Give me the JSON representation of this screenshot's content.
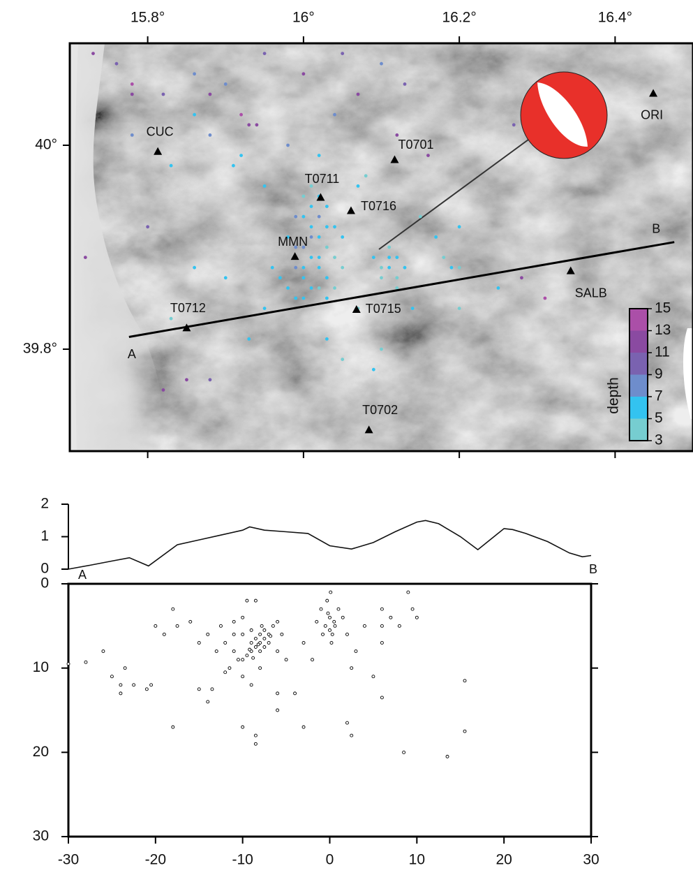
{
  "chart_data": [
    {
      "type": "scatter",
      "xlim": [
        15.7,
        16.5
      ],
      "ylim": [
        39.7,
        40.1
      ],
      "xticks": [
        {
          "value": 15.8,
          "label": "15.8°"
        },
        {
          "value": 16,
          "label": "16°"
        },
        {
          "value": 16.2,
          "label": "16.2°"
        },
        {
          "value": 16.4,
          "label": "16.4°"
        }
      ],
      "yticks": [
        {
          "value": 39.8,
          "label": "39.8°"
        },
        {
          "value": 40,
          "label": "40°"
        }
      ],
      "stations": [
        {
          "name": "CUC",
          "lon": 15.813,
          "lat": 39.994
        },
        {
          "name": "T0701",
          "lon": 16.117,
          "lat": 39.986
        },
        {
          "name": "T0711",
          "lon": 16.022,
          "lat": 39.949
        },
        {
          "name": "T0716",
          "lon": 16.061,
          "lat": 39.936
        },
        {
          "name": "MMN",
          "lon": 15.989,
          "lat": 39.891
        },
        {
          "name": "T0715",
          "lon": 16.068,
          "lat": 39.839
        },
        {
          "name": "T0712",
          "lon": 15.85,
          "lat": 39.821
        },
        {
          "name": "T0702",
          "lon": 16.084,
          "lat": 39.721
        },
        {
          "name": "SALB",
          "lon": 16.343,
          "lat": 39.877
        },
        {
          "name": "ORI",
          "lon": 16.449,
          "lat": 40.051
        }
      ],
      "profile": {
        "start_label": "A",
        "end_label": "B",
        "start_lon": 15.776,
        "start_lat": 39.812,
        "end_lon": 16.476,
        "end_lat": 39.905
      },
      "earthquakes": {
        "lon": [
          16.0,
          16.01,
          16.02,
          16.0,
          16.01,
          16.02,
          16.03,
          16.03,
          16.0,
          15.99,
          16.01,
          16.0,
          16.02,
          16.01,
          16.03,
          16.04,
          15.98,
          15.99,
          16.02,
          16.0,
          16.04,
          16.03,
          16.01,
          16.02,
          15.97,
          16.05,
          15.99,
          16.04,
          15.98,
          16.0,
          16.03,
          16.01,
          15.96,
          16.05,
          16.02,
          15.99,
          16.1,
          16.11,
          16.12,
          16.11,
          16.12,
          16.1,
          16.13,
          16.11,
          16.09,
          16.12,
          16.18,
          16.19,
          16.2,
          15.73,
          15.76,
          15.78,
          15.78,
          15.82,
          15.86,
          15.88,
          15.92,
          15.93,
          15.94,
          15.9,
          15.95,
          16.0,
          16.05,
          16.1,
          16.13,
          16.07,
          16.04,
          15.98,
          15.91,
          15.88,
          15.86,
          15.78,
          15.83,
          15.92,
          15.95,
          16.08,
          16.12,
          16.16,
          16.27,
          16.28,
          16.31,
          16.2,
          16.25,
          16.14,
          16.07,
          16.03,
          16.05,
          16.09,
          15.82,
          15.85,
          15.88,
          15.93,
          15.9,
          15.86,
          15.8,
          15.72,
          15.83,
          16.2,
          16.15,
          16.07,
          16.02,
          15.95,
          16.1,
          16.17
        ],
        "lat": [
          39.93,
          39.92,
          39.91,
          39.9,
          39.89,
          39.88,
          39.9,
          39.87,
          39.87,
          39.88,
          39.94,
          39.95,
          39.93,
          39.86,
          39.92,
          39.89,
          39.86,
          39.9,
          39.95,
          39.85,
          39.86,
          39.94,
          39.91,
          39.89,
          39.87,
          39.88,
          39.93,
          39.92,
          39.91,
          39.88,
          39.85,
          39.96,
          39.88,
          39.91,
          39.86,
          39.85,
          39.88,
          39.89,
          39.87,
          39.88,
          39.89,
          39.87,
          39.88,
          39.9,
          39.89,
          39.86,
          39.89,
          39.88,
          39.88,
          40.09,
          40.08,
          40.06,
          40.05,
          40.05,
          40.07,
          40.05,
          40.03,
          40.02,
          40.02,
          40.06,
          40.09,
          40.07,
          40.09,
          40.08,
          40.06,
          40.05,
          40.03,
          40.0,
          39.98,
          40.01,
          40.03,
          40.01,
          39.98,
          39.99,
          39.96,
          39.97,
          40.01,
          39.99,
          40.02,
          39.87,
          39.85,
          39.84,
          39.86,
          39.84,
          39.84,
          39.81,
          39.79,
          39.78,
          39.76,
          39.77,
          39.77,
          39.81,
          39.87,
          39.88,
          39.92,
          39.89,
          39.83,
          39.92,
          39.93,
          39.96,
          39.99,
          39.84,
          39.8,
          39.91
        ],
        "depth": [
          7,
          6,
          7,
          8,
          7,
          6,
          5,
          6,
          7,
          8,
          6,
          5,
          8,
          7,
          6,
          5,
          7,
          9,
          7,
          6,
          5,
          6,
          8,
          7,
          6,
          5,
          8,
          7,
          6,
          7,
          6,
          5,
          7,
          6,
          5,
          6,
          5,
          6,
          5,
          6,
          7,
          5,
          6,
          5,
          6,
          5,
          5,
          6,
          5,
          13,
          11,
          14,
          13,
          10,
          9,
          13,
          14,
          12,
          13,
          9,
          11,
          12,
          11,
          9,
          10,
          12,
          9,
          8,
          7,
          9,
          6,
          8,
          7,
          6,
          7,
          5,
          12,
          13,
          11,
          12,
          14,
          5,
          6,
          7,
          5,
          6,
          5,
          6,
          13,
          12,
          11,
          7,
          6,
          7,
          11,
          12,
          5,
          6,
          5,
          6,
          7,
          6,
          5,
          7
        ]
      },
      "colorbar": {
        "label": "depth",
        "ticks": [
          3,
          5,
          7,
          9,
          11,
          13,
          15
        ],
        "colors": [
          "#76cdd0",
          "#33c3f0",
          "#6e8dcc",
          "#7a62b0",
          "#8a4aa1",
          "#ab4fa8"
        ]
      }
    },
    {
      "type": "line",
      "xlim": [
        -30,
        30
      ],
      "ylim": [
        0,
        2
      ],
      "yticks": [
        0,
        1,
        2
      ],
      "start_label": "A",
      "end_label": "B",
      "x": [
        -30,
        -27.5,
        -25,
        -23,
        -20.8,
        -17.5,
        -15,
        -12.5,
        -10,
        -9.2,
        -7.5,
        -5,
        -2.5,
        0,
        2.5,
        5,
        7.5,
        10,
        11,
        12.5,
        15,
        17,
        20,
        21,
        22.5,
        25,
        27.5,
        29,
        30
      ],
      "values": [
        0,
        0.12,
        0.25,
        0.35,
        0.1,
        0.75,
        0.9,
        1.05,
        1.2,
        1.3,
        1.2,
        1.15,
        1.1,
        0.72,
        0.62,
        0.82,
        1.15,
        1.45,
        1.5,
        1.4,
        1.0,
        0.6,
        1.25,
        1.22,
        1.1,
        0.85,
        0.5,
        0.38,
        0.42
      ],
      "color": "#111111"
    },
    {
      "type": "scatter",
      "xlim": [
        -30,
        30
      ],
      "ylim": [
        0,
        30
      ],
      "y_inverted": true,
      "xticks": [
        -30,
        -20,
        -10,
        0,
        10,
        20,
        30
      ],
      "yticks": [
        0,
        10,
        20,
        30
      ],
      "x": [
        -8,
        -7.5,
        -8.5,
        -9,
        -8,
        -7,
        -7.5,
        -8.5,
        -9.5,
        -9,
        -8,
        -7,
        -6.5,
        -7.5,
        -10,
        -8.8,
        -9.2,
        -7.8,
        -6.8,
        -8.2,
        -10.5,
        -11,
        -9,
        -10,
        -11,
        -12,
        -12.5,
        -13,
        -14,
        -11.5,
        -10,
        -9,
        -8,
        -6,
        -5,
        -5.5,
        -6,
        -9.5,
        -8.5,
        -10,
        -11,
        -12,
        -13.5,
        0,
        -0.5,
        0.3,
        -0.2,
        0.5,
        -1,
        0,
        0.2,
        -0.3,
        0.1,
        1,
        -0.8,
        0.6,
        1.5,
        -1.5,
        2,
        3,
        2.5,
        -2,
        -3,
        4,
        6,
        7,
        6,
        8,
        9,
        10,
        9.5,
        6,
        -30,
        -28,
        -26,
        -25,
        -24,
        -24,
        -23.5,
        -22.5,
        -21,
        -20,
        -19,
        -18,
        -17.5,
        -16,
        -15,
        -14,
        -18,
        -10,
        -8.5,
        -8.5,
        -6,
        -3,
        2,
        2.5,
        6,
        8.5,
        13.5,
        15.5,
        15.5,
        5,
        -4,
        -6,
        -15,
        -20.5
      ],
      "y": [
        7,
        6.5,
        7.5,
        8,
        8,
        6,
        5.5,
        6.5,
        8.5,
        7,
        6,
        7,
        5,
        7.5,
        9,
        8.8,
        7.8,
        5,
        6.2,
        7.2,
        9,
        8,
        5.5,
        6,
        6,
        7,
        5,
        8,
        6,
        10,
        11,
        12,
        10,
        8,
        9,
        6,
        4.5,
        2,
        2,
        4,
        4.5,
        10.5,
        12.5,
        4,
        5,
        6,
        3.5,
        4.5,
        3,
        5.5,
        7,
        2,
        1,
        3,
        6,
        5,
        4,
        4.5,
        6,
        8,
        10,
        9,
        7,
        5,
        5,
        4,
        3,
        5,
        1,
        4,
        3,
        7,
        9.5,
        9.3,
        8,
        11,
        12,
        13,
        10,
        12,
        12.5,
        5,
        6,
        3,
        5,
        4.5,
        7,
        14,
        17,
        17,
        18,
        19,
        15,
        17,
        16.5,
        18,
        13.5,
        20,
        20.5,
        11.5,
        17.5,
        11,
        13,
        13,
        12.5,
        12
      ]
    }
  ]
}
